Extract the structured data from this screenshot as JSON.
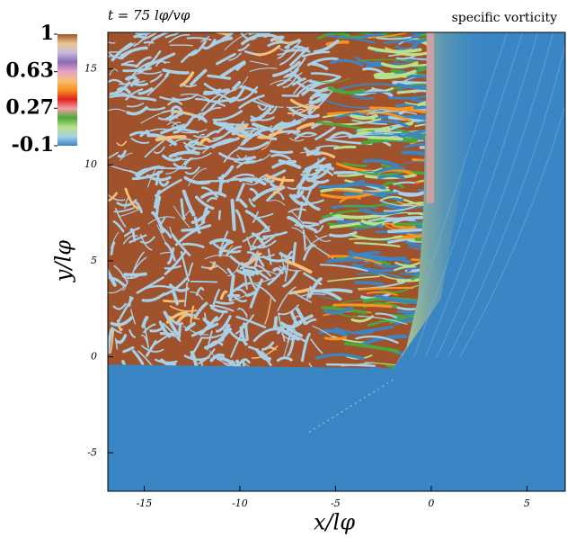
{
  "chart_data": {
    "type": "heatmap",
    "title": "t = 75 lφ/vφ",
    "colorbar_label": "specific vorticity",
    "x_label": "x/lφ",
    "y_label": "y/lφ",
    "xlim": [
      -16.9,
      7
    ],
    "ylim": [
      -7,
      16.9
    ],
    "xticks": [
      -15,
      -10,
      -5,
      0,
      5
    ],
    "yticks": [
      -5,
      0,
      5,
      10,
      15
    ],
    "colorbar": {
      "lim": [
        -0.1,
        1
      ],
      "ticks": [
        -0.1,
        0.27,
        0.63,
        1
      ],
      "colors": [
        "#3a86c4",
        "#a8d0e6",
        "#b9e08a",
        "#4aa83a",
        "#f2a0a0",
        "#e02020",
        "#f7941d",
        "#f5c07a",
        "#e8a0c8",
        "#8a6cb0",
        "#c8b8e0",
        "#e8c890",
        "#a0522d"
      ]
    }
  }
}
